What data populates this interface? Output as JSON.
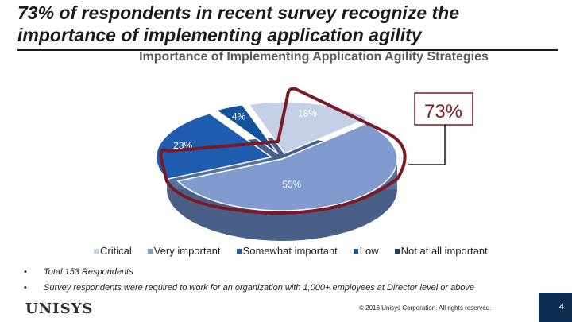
{
  "slide": {
    "title": "73% of respondents in recent survey recognize the importance of implementing application agility"
  },
  "chart_data": {
    "type": "pie",
    "title": "Importance of Implementing Application Agility Strategies",
    "categories": [
      "Critical",
      "Very important",
      "Somewhat important",
      "Low",
      "Not at all important"
    ],
    "values": [
      18,
      55,
      23,
      4,
      0
    ],
    "labels": [
      "18%",
      "55%",
      "23%",
      "4%",
      ""
    ],
    "colors": [
      "#c5cfe6",
      "#809ccf",
      "#1f5db0",
      "#12549b",
      "#1d3f6b"
    ],
    "callout": "73%",
    "callout_color": "#7a1a26"
  },
  "notes": [
    {
      "bullet": "•",
      "text": "Total 153 Respondents"
    },
    {
      "bullet": "•",
      "text": "Survey respondents were required to work for an organization with 1,000+ employees at Director level or above"
    }
  ],
  "footer": {
    "logo": "UNISYS",
    "copyright": "© 2016 Unisys Corporation. All rights reserved.",
    "page_number": "4"
  }
}
